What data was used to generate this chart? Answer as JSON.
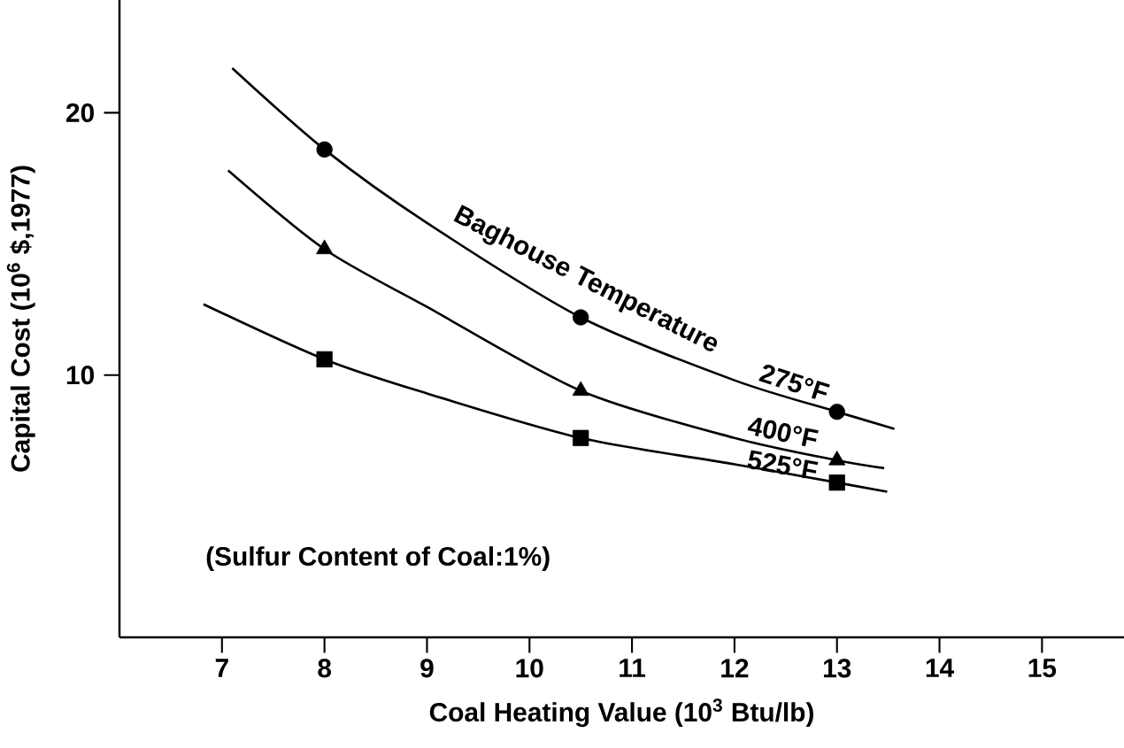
{
  "chart_data": {
    "type": "line",
    "xlabel": "Coal Heating Value (10$^{3}$ Btu/lb)",
    "ylabel": "Capital Cost (10$^{6}$ $,1977)",
    "xlim": [
      6,
      15.8
    ],
    "ylim": [
      0,
      24.3
    ],
    "xticks": [
      7,
      8,
      9,
      10,
      11,
      12,
      13,
      14,
      15
    ],
    "yticks": [
      10,
      20
    ],
    "grid": false,
    "legend": false,
    "annotations": [
      "Baghouse Temperature",
      "(Sulfur Content of Coal:1%)"
    ],
    "series": [
      {
        "name": "275°F",
        "marker": "none",
        "color": "#000000",
        "x": [
          7.1,
          8,
          9,
          10.5,
          12,
          13,
          13.56
        ],
        "values": [
          21.7,
          18.6,
          15.8,
          12.2,
          9.8,
          8.6,
          7.95
        ]
      },
      {
        "name": "400°F",
        "marker": "none",
        "color": "#000000",
        "x": [
          7.06,
          8,
          9,
          10.5,
          12,
          13,
          13.46
        ],
        "values": [
          17.8,
          14.8,
          12.6,
          9.4,
          7.6,
          6.75,
          6.45
        ]
      },
      {
        "name": "525°F",
        "marker": "none",
        "color": "#000000",
        "x": [
          6.82,
          8,
          9,
          10.5,
          12,
          13,
          13.49
        ],
        "values": [
          12.7,
          10.6,
          9.3,
          7.6,
          6.6,
          5.9,
          5.55
        ]
      },
      {
        "type": "scatter",
        "marker": "circle",
        "color": "#000000",
        "x": [
          8,
          10.5,
          13
        ],
        "values": [
          18.6,
          12.2,
          8.6
        ]
      },
      {
        "type": "scatter",
        "marker": "triangle",
        "color": "#000000",
        "x": [
          8,
          10.5,
          13
        ],
        "values": [
          14.8,
          9.4,
          6.75
        ]
      },
      {
        "type": "scatter",
        "marker": "square",
        "color": "#000000",
        "x": [
          8,
          10.5,
          13
        ],
        "values": [
          10.6,
          7.6,
          5.9
        ]
      }
    ]
  }
}
